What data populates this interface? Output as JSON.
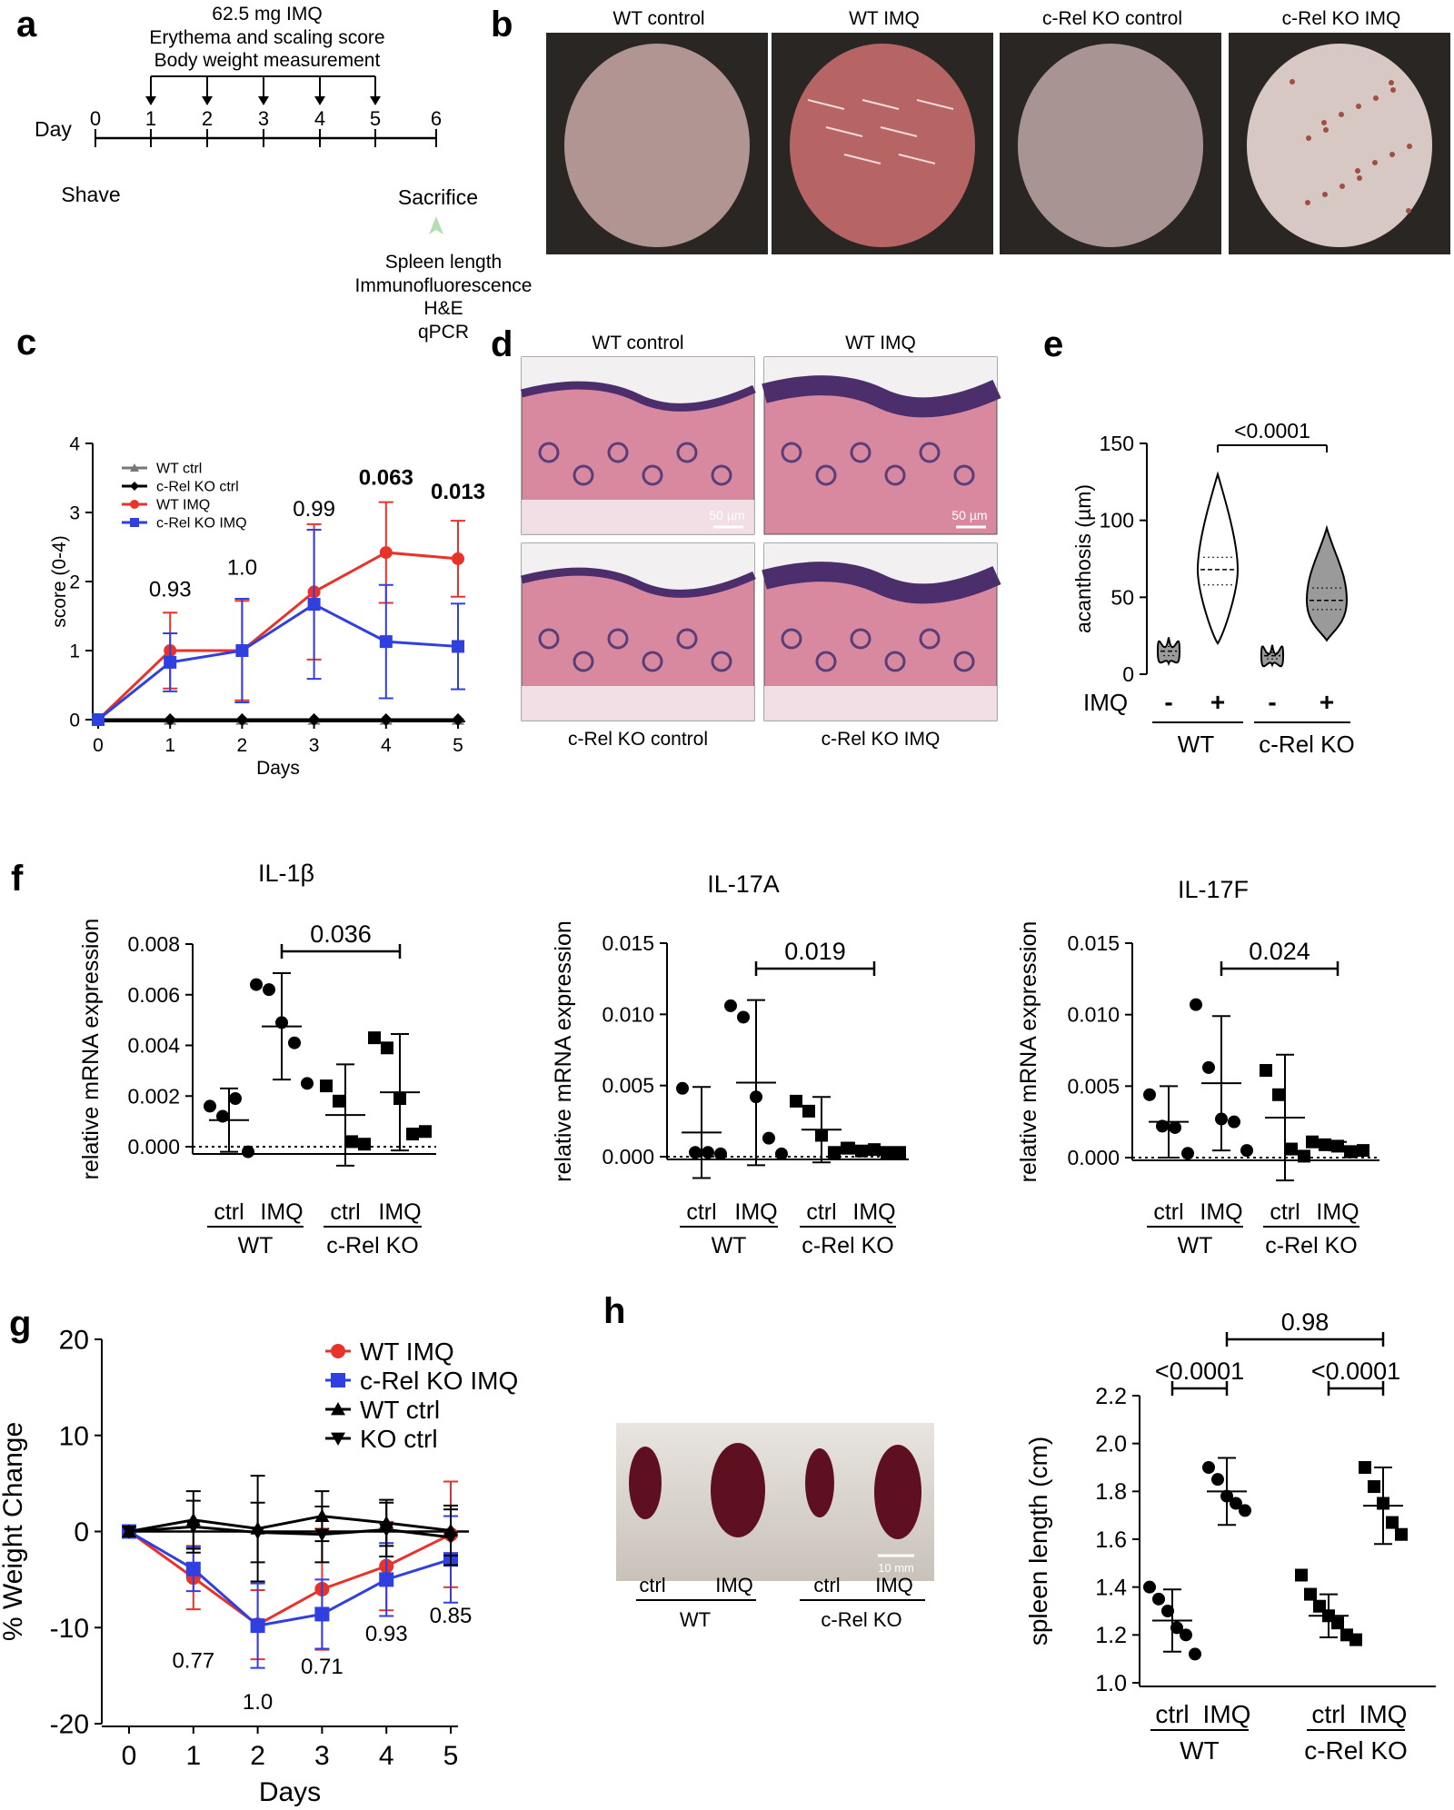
{
  "colors": {
    "red": "#e8332a",
    "blue": "#2f3fe0",
    "black": "#000000",
    "gray": "#777777",
    "violin_gray": "#9a9a9a"
  },
  "panel_a": {
    "label": "a",
    "header": [
      "62.5 mg IMQ",
      "Erythema and scaling score",
      "Body weight measurement"
    ],
    "day_label": "Day",
    "days": [
      "0",
      "1",
      "2",
      "3",
      "4",
      "5",
      "6"
    ],
    "shave": "Shave",
    "sacrifice": "Sacrifice",
    "endpoints": [
      "Spleen length",
      "Immunofluorescence",
      "H&E",
      "qPCR"
    ]
  },
  "panel_b": {
    "label": "b",
    "photos": [
      {
        "title": "WT control",
        "tone": "#b09593"
      },
      {
        "title": "WT IMQ",
        "tone": "#b76464"
      },
      {
        "title": "c-Rel KO control",
        "tone": "#a89593"
      },
      {
        "title": "c-Rel KO IMQ",
        "tone": "#d7c8c4"
      }
    ]
  },
  "panel_d": {
    "label": "d",
    "titles": [
      "WT control",
      "WT IMQ",
      "c-Rel KO control",
      "c-Rel KO IMQ"
    ],
    "scalebar": "50 µm"
  },
  "panel_h_photo": {
    "scalebar": "10 mm",
    "labels": [
      "ctrl",
      "IMQ",
      "ctrl",
      "IMQ"
    ],
    "groups": [
      "WT",
      "c-Rel KO"
    ]
  },
  "chart_data": [
    {
      "id": "c",
      "type": "line",
      "label": "c",
      "xlabel": "Days",
      "ylabel": "score (0-4)",
      "x": [
        0,
        1,
        2,
        3,
        4,
        5
      ],
      "xlim": [
        0,
        5
      ],
      "ylim": [
        0,
        4
      ],
      "yticks": [
        0,
        1,
        2,
        3,
        4
      ],
      "series": [
        {
          "name": "WT ctrl",
          "values": [
            0,
            0,
            0,
            0,
            0,
            0
          ],
          "sd": [
            0,
            0,
            0,
            0,
            0,
            0
          ],
          "color": "#777777",
          "marker": "triangle"
        },
        {
          "name": "c-Rel KO ctrl",
          "values": [
            0,
            0,
            0,
            0,
            0,
            0
          ],
          "sd": [
            0,
            0,
            0,
            0,
            0,
            0
          ],
          "color": "#000000",
          "marker": "diamond"
        },
        {
          "name": "WT IMQ",
          "values": [
            0,
            1.0,
            1.0,
            1.85,
            2.42,
            2.33
          ],
          "sd": [
            0,
            0.55,
            0.72,
            0.98,
            0.73,
            0.55
          ],
          "color": "#e8332a",
          "marker": "circle"
        },
        {
          "name": "c-Rel KO IMQ",
          "values": [
            0,
            0.83,
            1.0,
            1.67,
            1.13,
            1.06
          ],
          "sd": [
            0,
            0.42,
            0.75,
            1.08,
            0.82,
            0.62
          ],
          "color": "#2f3fe0",
          "marker": "square"
        }
      ],
      "annotations": [
        {
          "x": 1,
          "y": 1.78,
          "text": "0.93",
          "bold": false
        },
        {
          "x": 2,
          "y": 2.1,
          "text": "1.0",
          "bold": false
        },
        {
          "x": 3,
          "y": 2.95,
          "text": "0.99",
          "bold": false
        },
        {
          "x": 4,
          "y": 3.4,
          "text": "0.063",
          "bold": true
        },
        {
          "x": 5,
          "y": 3.2,
          "text": "0.013",
          "bold": true
        }
      ],
      "legend": "top-left"
    },
    {
      "id": "e",
      "type": "violin",
      "label": "e",
      "ylabel": "acanthosis (µm)",
      "ylim": [
        0,
        150
      ],
      "yticks": [
        0,
        50,
        100,
        150
      ],
      "row_label": "IMQ",
      "categories": [
        "-",
        "+",
        "-",
        "+"
      ],
      "groups": [
        "WT",
        "c-Rel KO"
      ],
      "violins": [
        {
          "median": 15,
          "min": 7,
          "max": 24,
          "q1": 12,
          "q3": 18,
          "fill": "#9a9a9a"
        },
        {
          "median": 68,
          "min": 20,
          "max": 130,
          "q1": 58,
          "q3": 76,
          "fill": "#ffffff"
        },
        {
          "median": 12,
          "min": 6,
          "max": 19,
          "q1": 10,
          "q3": 14,
          "fill": "#9a9a9a"
        },
        {
          "median": 48,
          "min": 22,
          "max": 95,
          "q1": 42,
          "q3": 56,
          "fill": "#9a9a9a"
        }
      ],
      "comparison": {
        "from": 1,
        "to": 3,
        "text": "<0.0001"
      }
    },
    {
      "id": "f1",
      "type": "scatter",
      "label": "f",
      "title": "IL-1β",
      "ylabel": "relative mRNA expression",
      "ylim": [
        0,
        0.008
      ],
      "yticks": [
        0.0,
        0.002,
        0.004,
        0.006,
        0.008
      ],
      "ytick_labels": [
        "0.000",
        "0.002",
        "0.004",
        "0.006",
        "0.008"
      ],
      "categories": [
        "ctrl",
        "IMQ",
        "ctrl",
        "IMQ"
      ],
      "groups": [
        "WT",
        "c-Rel KO"
      ],
      "series": [
        {
          "marker": "circle",
          "points": [
            0.0016,
            0.0012,
            0.0019,
            -0.0002
          ],
          "mean": 0.00105,
          "sd": 0.00125
        },
        {
          "marker": "circle",
          "points": [
            0.0064,
            0.0062,
            0.0049,
            0.0041,
            0.0025
          ],
          "mean": 0.00475,
          "sd": 0.0021
        },
        {
          "marker": "square",
          "points": [
            0.0024,
            0.0018,
            0.0002,
            0.0001
          ],
          "mean": 0.00125,
          "sd": 0.002
        },
        {
          "marker": "square",
          "points": [
            0.0043,
            0.0039,
            0.0019,
            0.0005,
            0.0006
          ],
          "mean": 0.00215,
          "sd": 0.0023
        }
      ],
      "comparison": {
        "from": 1,
        "to": 3,
        "text": "0.036"
      }
    },
    {
      "id": "f2",
      "type": "scatter",
      "title": "IL-17A",
      "ylabel": "relative mRNA expression",
      "ylim": [
        0,
        0.015
      ],
      "yticks": [
        0.0,
        0.005,
        0.01,
        0.015
      ],
      "ytick_labels": [
        "0.000",
        "0.005",
        "0.010",
        "0.015"
      ],
      "categories": [
        "ctrl",
        "IMQ",
        "ctrl",
        "IMQ"
      ],
      "groups": [
        "WT",
        "c-Rel KO"
      ],
      "series": [
        {
          "marker": "circle",
          "points": [
            0.0048,
            0.0003,
            0.0003,
            0.0002
          ],
          "mean": 0.0017,
          "sd": 0.0032
        },
        {
          "marker": "circle",
          "points": [
            0.0106,
            0.0098,
            0.0042,
            0.0013,
            0.0002
          ],
          "mean": 0.0052,
          "sd": 0.0058
        },
        {
          "marker": "square",
          "points": [
            0.0039,
            0.0032,
            0.0015,
            0.0003,
            0.0006
          ],
          "mean": 0.0019,
          "sd": 0.0023
        },
        {
          "marker": "square",
          "points": [
            0.0006,
            0.0004,
            0.0005,
            0.0003,
            0.0003
          ],
          "mean": 0.0004,
          "sd": 0.0001
        }
      ],
      "comparison": {
        "from": 1,
        "to": 3,
        "text": "0.019"
      }
    },
    {
      "id": "f3",
      "type": "scatter",
      "title": "IL-17F",
      "ylabel": "relative mRNA expression",
      "ylim": [
        0,
        0.015
      ],
      "yticks": [
        0.0,
        0.005,
        0.01,
        0.015
      ],
      "ytick_labels": [
        "0.000",
        "0.005",
        "0.010",
        "0.015"
      ],
      "categories": [
        "ctrl",
        "IMQ",
        "ctrl",
        "IMQ"
      ],
      "groups": [
        "WT",
        "c-Rel KO"
      ],
      "series": [
        {
          "marker": "circle",
          "points": [
            0.0044,
            0.0022,
            0.0021,
            0.0003
          ],
          "mean": 0.0025,
          "sd": 0.0025
        },
        {
          "marker": "circle",
          "points": [
            0.0107,
            0.0063,
            0.0027,
            0.0025,
            0.0005
          ],
          "mean": 0.0052,
          "sd": 0.0047
        },
        {
          "marker": "square",
          "points": [
            0.0061,
            0.0044,
            0.0006,
            0.0001
          ],
          "mean": 0.0028,
          "sd": 0.0044
        },
        {
          "marker": "square",
          "points": [
            0.0011,
            0.0009,
            0.0008,
            0.0004,
            0.0005
          ],
          "mean": 0.0008,
          "sd": 0.0003
        }
      ],
      "comparison": {
        "from": 1,
        "to": 3,
        "text": "0.024"
      }
    },
    {
      "id": "g",
      "type": "line",
      "label": "g",
      "xlabel": "Days",
      "ylabel": "% Weight Change",
      "x": [
        0,
        1,
        2,
        3,
        4,
        5
      ],
      "ylim": [
        -20,
        20
      ],
      "yticks": [
        -20,
        -10,
        0,
        10,
        20
      ],
      "series": [
        {
          "name": "WT IMQ",
          "values": [
            0,
            -4.8,
            -9.7,
            -6.0,
            -3.6,
            -0.3
          ],
          "sd": [
            0,
            3.3,
            3.6,
            6.3,
            4.6,
            5.5
          ],
          "color": "#e8332a",
          "marker": "circle"
        },
        {
          "name": "c-Rel KO IMQ",
          "values": [
            0,
            -3.9,
            -9.8,
            -8.6,
            -5.0,
            -2.9
          ],
          "sd": [
            0,
            2.3,
            4.4,
            3.6,
            3.8,
            4.5
          ],
          "color": "#2f3fe0",
          "marker": "square"
        },
        {
          "name": "WT ctrl",
          "values": [
            0,
            1.2,
            0.3,
            1.6,
            0.9,
            0.1
          ],
          "sd": [
            0,
            3.0,
            5.5,
            2.6,
            2.4,
            2.6
          ],
          "color": "#000000",
          "marker": "triangle"
        },
        {
          "name": "KO ctrl",
          "values": [
            0,
            0.5,
            -0.1,
            -0.3,
            0.2,
            -0.6
          ],
          "sd": [
            0,
            2.7,
            3.1,
            2.9,
            2.8,
            2.9
          ],
          "color": "#000000",
          "marker": "triangle-down"
        }
      ],
      "annotations": [
        {
          "x": 1,
          "y": -14.2,
          "text": "0.77"
        },
        {
          "x": 2,
          "y": -18.5,
          "text": "1.0"
        },
        {
          "x": 3,
          "y": -14.8,
          "text": "0.71"
        },
        {
          "x": 4,
          "y": -11.4,
          "text": "0.93"
        },
        {
          "x": 5,
          "y": -9.5,
          "text": "0.85"
        }
      ],
      "legend": "top-right"
    },
    {
      "id": "h",
      "type": "scatter",
      "label": "h",
      "ylabel": "spleen length (cm)",
      "ylim": [
        1.0,
        2.2
      ],
      "yticks": [
        1.0,
        1.2,
        1.4,
        1.6,
        1.8,
        2.0,
        2.2
      ],
      "ytick_labels": [
        "1.0",
        "1.2",
        "1.4",
        "1.6",
        "1.8",
        "2.0",
        "2.2"
      ],
      "categories": [
        "ctrl",
        "IMQ",
        "ctrl",
        "IMQ"
      ],
      "groups": [
        "WT",
        "c-Rel KO"
      ],
      "series": [
        {
          "marker": "circle",
          "points": [
            1.4,
            1.35,
            1.3,
            1.23,
            1.2,
            1.12
          ],
          "mean": 1.26,
          "sd": 0.13
        },
        {
          "marker": "circle",
          "points": [
            1.9,
            1.85,
            1.78,
            1.75,
            1.72
          ],
          "mean": 1.8,
          "sd": 0.14
        },
        {
          "marker": "square",
          "points": [
            1.45,
            1.37,
            1.32,
            1.28,
            1.25,
            1.2,
            1.18
          ],
          "mean": 1.28,
          "sd": 0.09
        },
        {
          "marker": "square",
          "points": [
            1.9,
            1.82,
            1.75,
            1.67,
            1.62
          ],
          "mean": 1.74,
          "sd": 0.16
        }
      ],
      "comparisons": [
        {
          "from": 0,
          "to": 1,
          "text": "<0.0001",
          "level": 1
        },
        {
          "from": 2,
          "to": 3,
          "text": "<0.0001",
          "level": 1
        },
        {
          "from": 1,
          "to": 3,
          "text": "0.98",
          "level": 2
        }
      ]
    }
  ]
}
